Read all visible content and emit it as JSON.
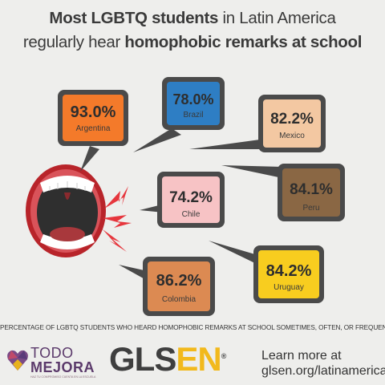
{
  "title": {
    "line1_bold": "Most LGBTQ students",
    "line1_rest": " in Latin America",
    "line2_rest": "regularly hear ",
    "line2_bold": "homophobic remarks at school"
  },
  "countries": [
    {
      "name": "Argentina",
      "percent": "93.0%",
      "color": "#f47a2a"
    },
    {
      "name": "Brazil",
      "percent": "78.0%",
      "color": "#2e7ec4"
    },
    {
      "name": "Mexico",
      "percent": "82.2%",
      "color": "#f3c8a2"
    },
    {
      "name": "Chile",
      "percent": "74.2%",
      "color": "#f7c3c5"
    },
    {
      "name": "Peru",
      "percent": "84.1%",
      "color": "#8a6744"
    },
    {
      "name": "Colombia",
      "percent": "86.2%",
      "color": "#dc8a52"
    },
    {
      "name": "Uruguay",
      "percent": "84.2%",
      "color": "#f8cd1f"
    }
  ],
  "footnote": "PERCENTAGE OF LGBTQ STUDENTS WHO HEARD HOMOPHOBIC REMARKS AT SCHOOL SOMETIMES, OFTEN, OR FREQUENTLY.",
  "footer": {
    "todo_line1": "TODO",
    "todo_line2": "MEJORA",
    "todo_tagline": "HAZ TU COMPROMISO CUENTA EN LA ESCUELA",
    "glsen_part1": "GLS",
    "glsen_part2": "EN",
    "glsen_mark": "®",
    "learn_line1": "Learn more at",
    "learn_line2": "glsen.org/latinamerica"
  },
  "colors": {
    "background": "#eeeeec",
    "bubble_frame": "#4a4a4a",
    "mouth_red": "#b8242a",
    "glsen_accent": "#f2b91c",
    "todo_purple": "#5b3a6b"
  }
}
